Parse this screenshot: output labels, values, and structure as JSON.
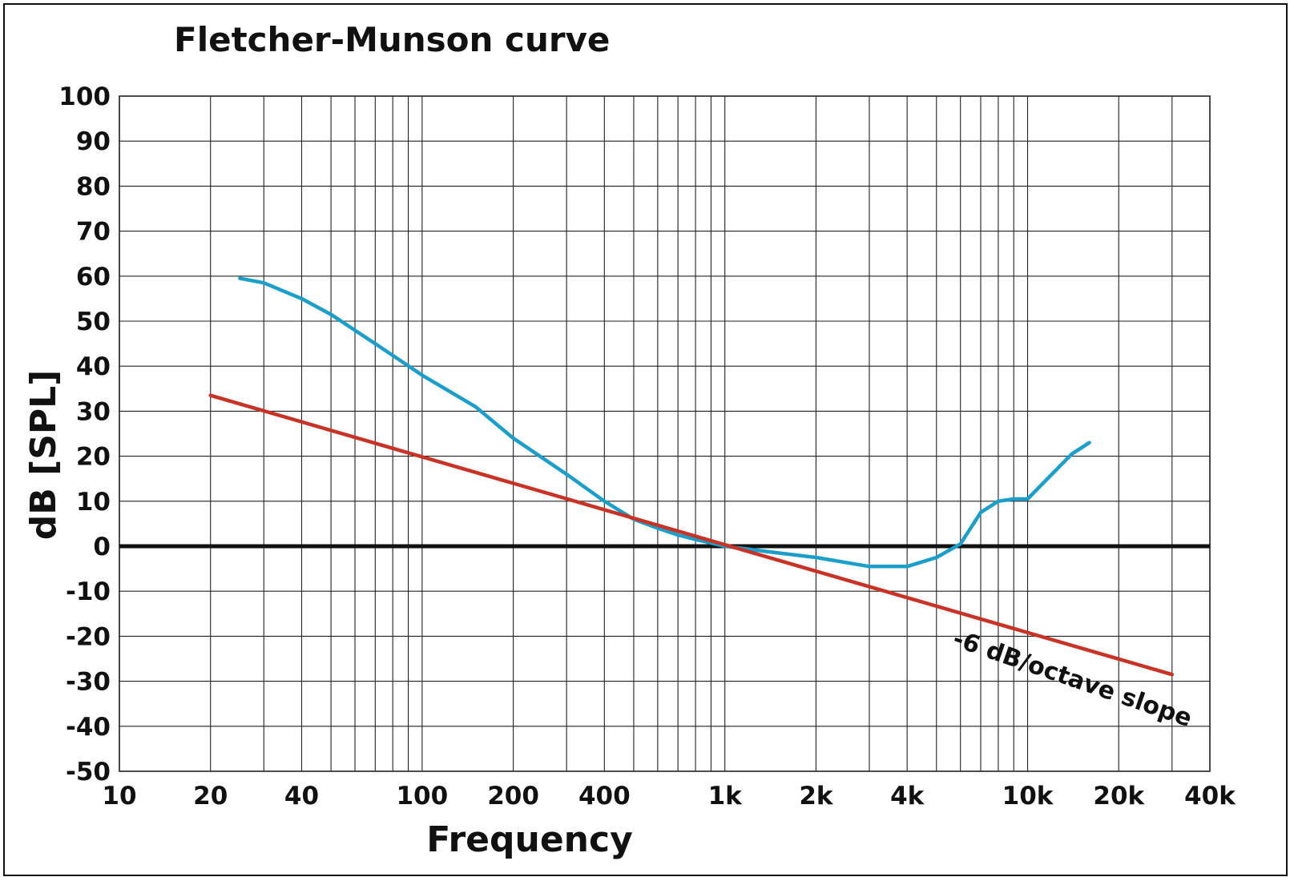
{
  "chart_data": {
    "type": "line",
    "title": "Fletcher-Munson curve",
    "xlabel": "Frequency",
    "ylabel": "dB [SPL]",
    "xscale": "log",
    "xlim": [
      10,
      40000
    ],
    "ylim": [
      -50,
      100
    ],
    "grid": true,
    "x_ticks": [
      {
        "value": 10,
        "label": "10"
      },
      {
        "value": 20,
        "label": "20"
      },
      {
        "value": 40,
        "label": "40"
      },
      {
        "value": 100,
        "label": "100"
      },
      {
        "value": 200,
        "label": "200"
      },
      {
        "value": 400,
        "label": "400"
      },
      {
        "value": 1000,
        "label": "1k"
      },
      {
        "value": 2000,
        "label": "2k"
      },
      {
        "value": 4000,
        "label": "4k"
      },
      {
        "value": 10000,
        "label": "10k"
      },
      {
        "value": 20000,
        "label": "20k"
      },
      {
        "value": 40000,
        "label": "40k"
      }
    ],
    "y_ticks": [
      {
        "value": 100,
        "label": "100"
      },
      {
        "value": 90,
        "label": "90"
      },
      {
        "value": 80,
        "label": "80"
      },
      {
        "value": 70,
        "label": "70"
      },
      {
        "value": 60,
        "label": "60"
      },
      {
        "value": 50,
        "label": "50"
      },
      {
        "value": 40,
        "label": "40"
      },
      {
        "value": 30,
        "label": "30"
      },
      {
        "value": 20,
        "label": "20"
      },
      {
        "value": 10,
        "label": "10"
      },
      {
        "value": 0,
        "label": "0"
      },
      {
        "value": -10,
        "label": "-10"
      },
      {
        "value": -20,
        "label": "-20"
      },
      {
        "value": -30,
        "label": "-30"
      },
      {
        "value": -40,
        "label": "-40"
      },
      {
        "value": -50,
        "label": "-50"
      }
    ],
    "series": [
      {
        "color": "#1a9fcb",
        "points": [
          [
            25,
            59.5
          ],
          [
            30,
            58.5
          ],
          [
            40,
            55
          ],
          [
            50,
            51.5
          ],
          [
            70,
            45
          ],
          [
            100,
            38
          ],
          [
            150,
            31
          ],
          [
            200,
            24
          ],
          [
            300,
            16
          ],
          [
            400,
            10
          ],
          [
            500,
            6
          ],
          [
            600,
            4
          ],
          [
            700,
            2.5
          ],
          [
            800,
            1.5
          ],
          [
            1000,
            0
          ],
          [
            1500,
            -1.5
          ],
          [
            2000,
            -2.5
          ],
          [
            3000,
            -4.5
          ],
          [
            4000,
            -4.5
          ],
          [
            5000,
            -2.5
          ],
          [
            6000,
            0.5
          ],
          [
            7000,
            7.5
          ],
          [
            8000,
            10
          ],
          [
            9000,
            10.5
          ],
          [
            10000,
            10.5
          ],
          [
            14000,
            20.5
          ],
          [
            16000,
            23
          ]
        ]
      },
      {
        "color": "#c93224",
        "points": [
          [
            20,
            33.5
          ],
          [
            30000,
            -28.5
          ]
        ]
      }
    ],
    "zero_line_color": "#111111",
    "annotations": [
      {
        "text": "-6 dB/octave slope",
        "x": 5600,
        "y": -22,
        "angle_deg": 19
      }
    ]
  }
}
